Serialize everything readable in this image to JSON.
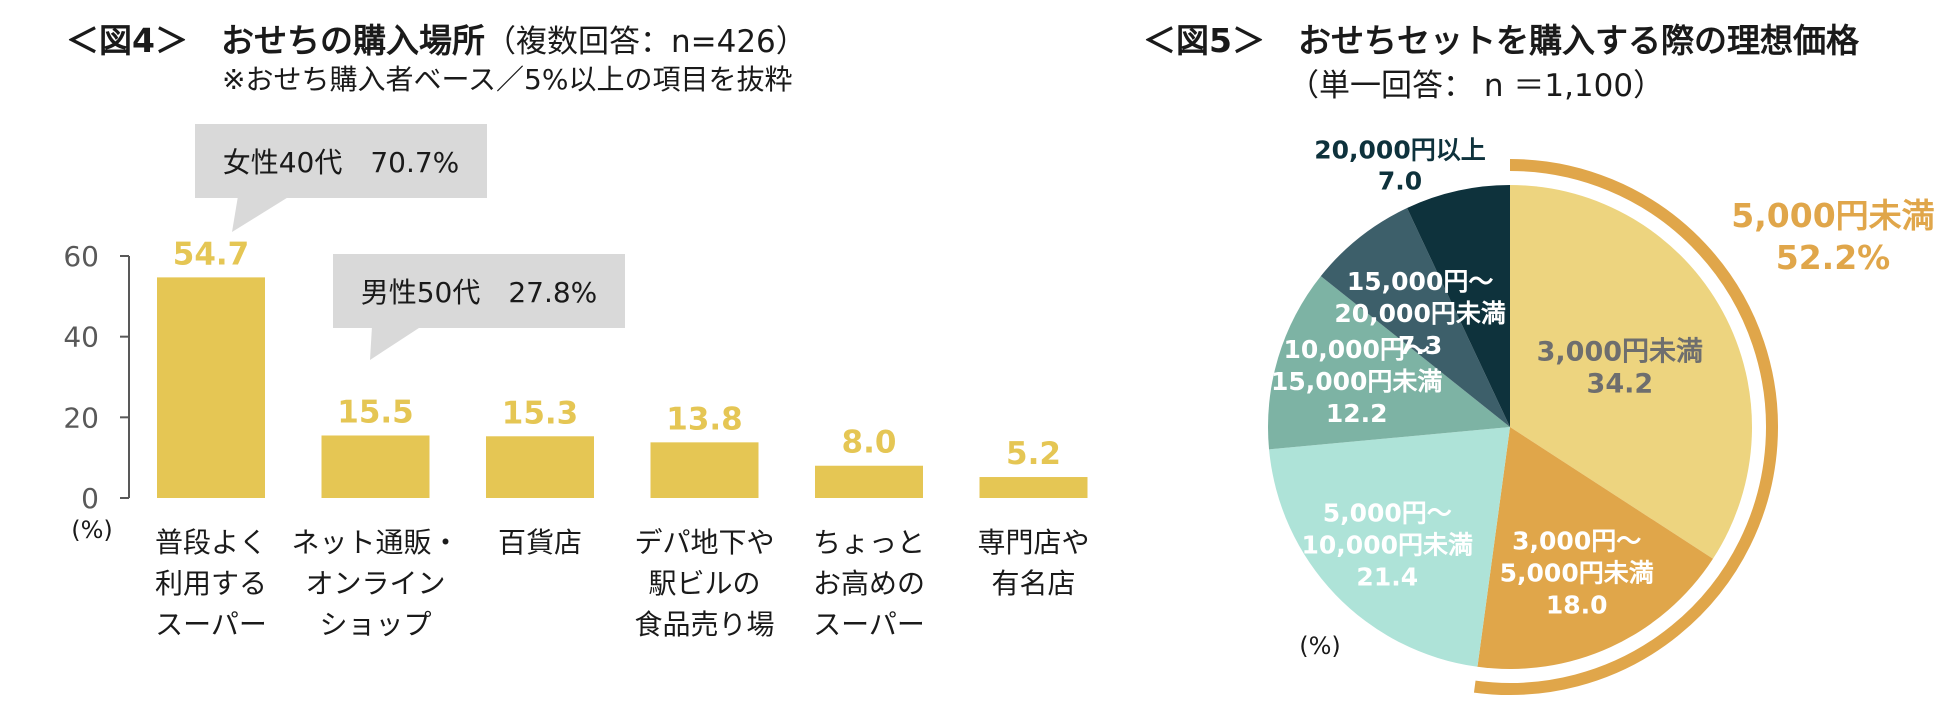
{
  "fig4": {
    "title": "＜図4＞　おせちの購入場所",
    "title_sub": "（複数回答：n=426）",
    "note": "※おせち購入者ベース／5%以上の項目を抜粋",
    "callouts": [
      {
        "text": "女性40代　70.7%"
      },
      {
        "text": "男性50代　27.8%"
      }
    ],
    "unit_label": "(%)"
  },
  "fig5": {
    "title": "＜図5＞　おせちセットを購入する際の理想価格",
    "subtitle": "（単一回答： n ＝1,100）",
    "unit_label": "(%)",
    "bracket_label": [
      "5,000円未満",
      "52.2%"
    ]
  },
  "colors": {
    "bar": "#e5c654",
    "bar_value": "#e5c654",
    "axis": "#595959",
    "callout_bg": "#d9d9d9",
    "bracket": "#e0a64a",
    "slices": [
      "#edd47f",
      "#e0a64a",
      "#aee3d8",
      "#7db3a4",
      "#3d5f6a",
      "#0e323c"
    ]
  },
  "chart_data": [
    {
      "type": "bar",
      "categories": [
        [
          "普段よく",
          "利用する",
          "スーパー"
        ],
        [
          "ネット通販・",
          "オンライン",
          "ショップ"
        ],
        [
          "百貨店"
        ],
        [
          "デパ地下や",
          "駅ビルの",
          "食品売り場"
        ],
        [
          "ちょっと",
          "お高めの",
          "スーパー"
        ],
        [
          "専門店や",
          "有名店"
        ]
      ],
      "values": [
        54.7,
        15.5,
        15.3,
        13.8,
        8.0,
        5.2
      ],
      "value_labels": [
        "54.7",
        "15.5",
        "15.3",
        "13.8",
        "8.0",
        "5.2"
      ],
      "yticks": [
        "0",
        "20",
        "40",
        "60"
      ],
      "ylim": [
        0,
        60
      ],
      "grid": false
    },
    {
      "type": "pie",
      "labels": [
        [
          "3,000円未満"
        ],
        [
          "3,000円～",
          "5,000円未満"
        ],
        [
          "5,000円～",
          "10,000円未満"
        ],
        [
          "10,000円～",
          "15,000円未満"
        ],
        [
          "15,000円～",
          "20,000円未満"
        ],
        [
          "20,000円以上"
        ]
      ],
      "values": [
        34.2,
        18.0,
        21.4,
        12.2,
        7.3,
        7.0
      ],
      "value_labels": [
        "34.2",
        "18.0",
        "21.4",
        "12.2",
        "7.3",
        "7.0"
      ]
    }
  ]
}
